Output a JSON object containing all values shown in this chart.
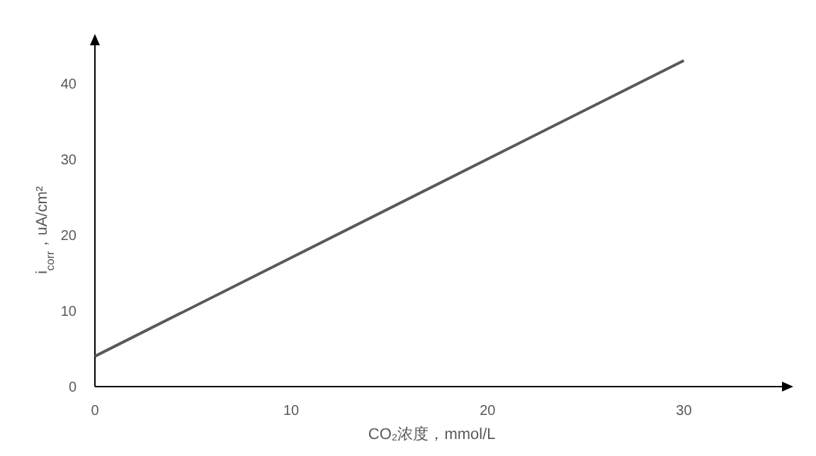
{
  "chart_data": {
    "type": "line",
    "xlabel": "CO₂浓度，mmol/L",
    "ylabel": "i$_{corr}$，uA/cm²",
    "x": [
      0,
      30
    ],
    "series": [
      {
        "color": "#595959",
        "values": [
          4,
          43
        ]
      }
    ],
    "xlim": [
      0,
      35
    ],
    "ylim": [
      0,
      45
    ],
    "xticks": [
      0,
      10,
      20,
      30
    ],
    "yticks": [
      0,
      10,
      20,
      30,
      40
    ],
    "grid": false,
    "marker": "none",
    "line_style": "solid"
  }
}
